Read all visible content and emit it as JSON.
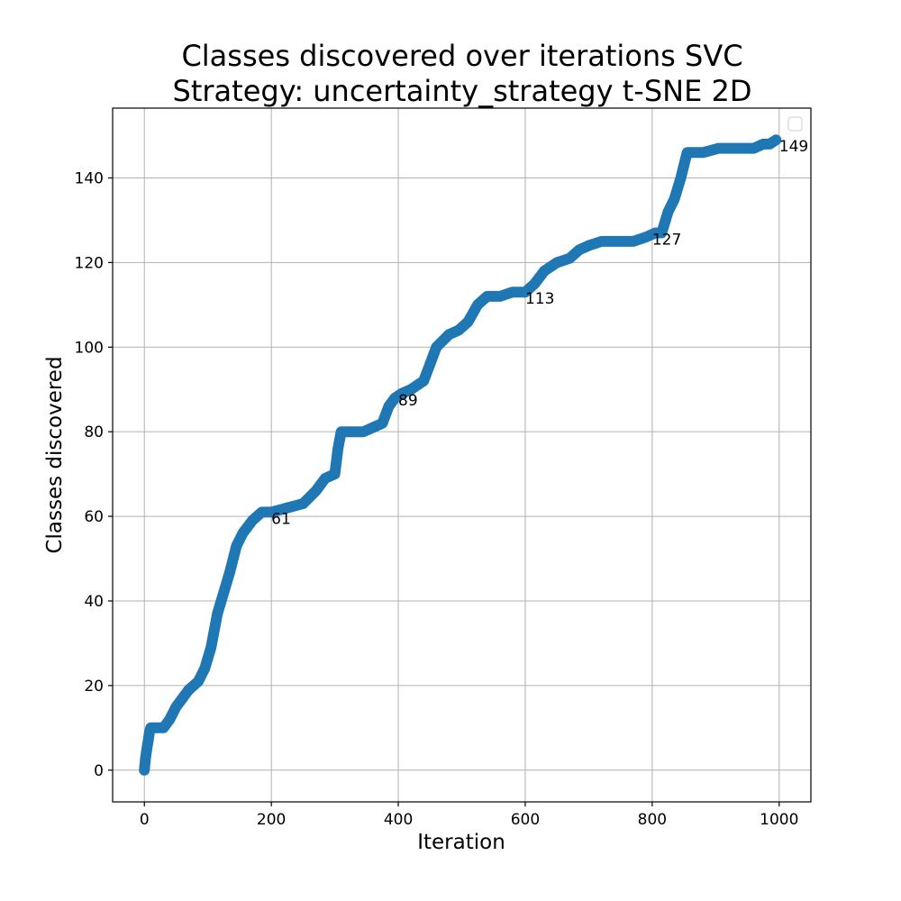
{
  "chart_data": {
    "type": "scatter",
    "title": "Classes discovered over iterations SVC",
    "subtitle": "Strategy: uncertainty_strategy t-SNE 2D",
    "xlabel": "Iteration",
    "ylabel": "Classes discovered",
    "xlim": [
      -50,
      1050
    ],
    "ylim": [
      -7.5,
      156.5
    ],
    "xticks": [
      0,
      200,
      400,
      600,
      800,
      1000
    ],
    "yticks": [
      0,
      20,
      40,
      60,
      80,
      100,
      120,
      140
    ],
    "grid": true,
    "legend": "top-right, empty",
    "color": "#1f77b4",
    "series": [
      {
        "x": [
          0,
          2,
          4,
          6,
          8,
          10,
          30,
          40,
          50,
          60,
          70,
          85,
          95,
          105,
          115,
          125,
          135,
          145,
          155,
          170,
          185,
          200,
          225,
          250,
          270,
          285,
          300,
          305,
          310,
          320,
          330,
          345,
          360,
          375,
          385,
          395,
          405,
          420,
          440,
          450,
          460,
          480,
          495,
          510,
          525,
          540,
          560,
          580,
          600,
          615,
          630,
          650,
          670,
          685,
          700,
          720,
          745,
          770,
          790,
          805,
          815,
          825,
          835,
          845,
          855,
          860,
          880,
          905,
          930,
          960,
          975,
          985,
          995
        ],
        "y": [
          0,
          3,
          5,
          7,
          9,
          10,
          10,
          12,
          15,
          17,
          19,
          21,
          24,
          29,
          37,
          42,
          47,
          53,
          56,
          59,
          61,
          61,
          62,
          63,
          66,
          69,
          70,
          76,
          80,
          80,
          80,
          80,
          81,
          82,
          86,
          88,
          89,
          90,
          92,
          96,
          100,
          103,
          104,
          106,
          110,
          112,
          112,
          113,
          113,
          115,
          118,
          120,
          121,
          123,
          124,
          125,
          125,
          125,
          126,
          127,
          127,
          132,
          135,
          140,
          146,
          146,
          146,
          147,
          147,
          147,
          148,
          148,
          149
        ]
      }
    ],
    "annotations": [
      {
        "x": 200,
        "y": 61,
        "text": "61"
      },
      {
        "x": 400,
        "y": 89,
        "text": "89"
      },
      {
        "x": 600,
        "y": 113,
        "text": "113"
      },
      {
        "x": 800,
        "y": 127,
        "text": "127"
      },
      {
        "x": 1000,
        "y": 149,
        "text": "149"
      }
    ]
  }
}
